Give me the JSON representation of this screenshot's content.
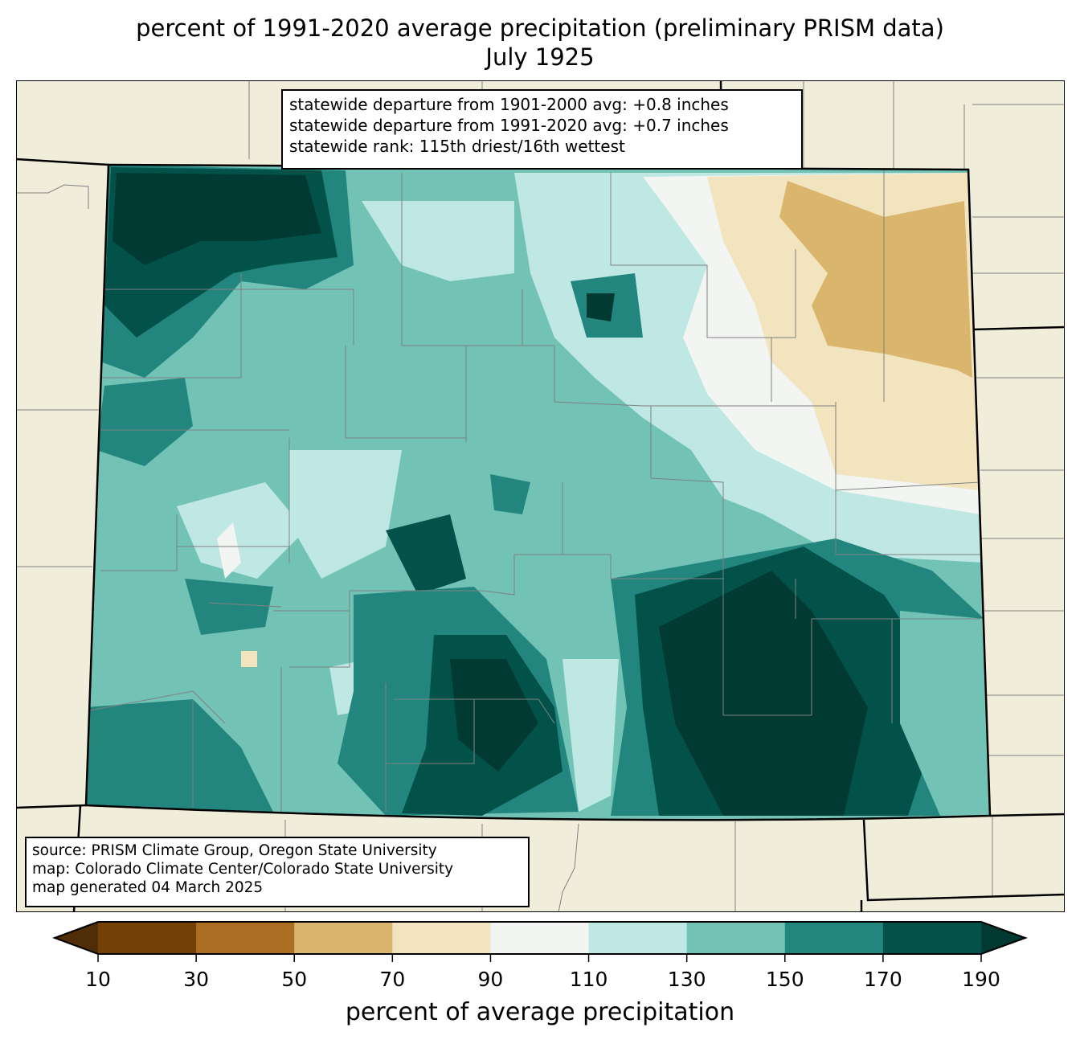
{
  "title": {
    "line1": "percent of 1991-2020 average precipitation (preliminary PRISM data)",
    "line2": "July 1925"
  },
  "stats_box": {
    "line1": "statewide departure from 1901-2000 avg: +0.8 inches",
    "line2": "statewide departure from 1991-2020 avg: +0.7 inches",
    "line3": "statewide rank: 115th driest/16th wettest"
  },
  "source_box": {
    "line1": "source: PRISM Climate Group, Oregon State University",
    "line2": "map: Colorado Climate Center/Colorado State University",
    "line3": "map generated 04 March 2025"
  },
  "colorbar": {
    "label": "percent of average precipitation",
    "ticks": [
      "10",
      "30",
      "50",
      "70",
      "90",
      "110",
      "130",
      "150",
      "170",
      "190"
    ],
    "colors": [
      "#734008",
      "#ac6e23",
      "#d9b56e",
      "#f2e4be",
      "#f3f5f3",
      "#bfe7e3",
      "#72c2b6",
      "#22867f",
      "#03524a"
    ],
    "under_color": "#4f2d06",
    "over_color": "#003a32"
  },
  "colors": {
    "background_land": "#f0eedb",
    "state_border": "#000000",
    "county_border": "#808080"
  }
}
